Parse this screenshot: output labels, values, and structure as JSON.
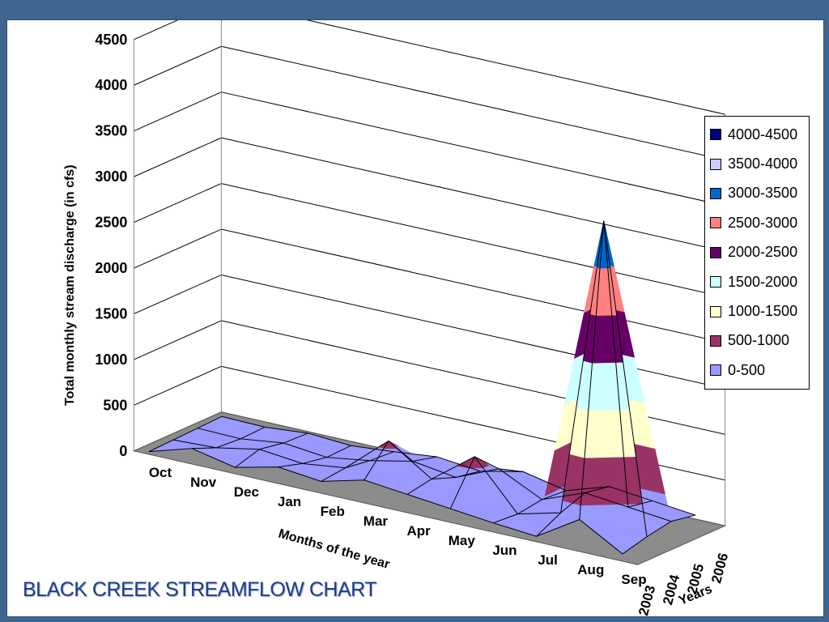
{
  "slide_title": "BLACK CREEK STREAMFLOW CHART",
  "colors": {
    "background": "#3e6690",
    "title": "#1f3d8a",
    "floor": "#8c8c8c"
  },
  "chart_data": {
    "type": "area",
    "chart_style": "3d-surface",
    "title": "",
    "xlabel": "Months of the year",
    "ylabel": "Total monthly stream discharge (in cfs)",
    "zlabel": "Years",
    "categories": [
      "Oct",
      "Nov",
      "Dec",
      "Jan",
      "Feb",
      "Mar",
      "Apr",
      "May",
      "Jun",
      "Jul",
      "Aug",
      "Sep"
    ],
    "years": [
      "2003",
      "2004",
      "2005",
      "2006"
    ],
    "ylim": [
      0,
      4500
    ],
    "yticks": [
      "0",
      "500",
      "1000",
      "1500",
      "2000",
      "2500",
      "3000",
      "3500",
      "4000",
      "4500"
    ],
    "grid": true,
    "legend_position": "right",
    "series": [
      {
        "name": "2003",
        "values": [
          30,
          170,
          70,
          180,
          130,
          250,
          200,
          150,
          100,
          60,
          350,
          80
        ]
      },
      {
        "name": "2004",
        "values": [
          40,
          60,
          150,
          100,
          160,
          560,
          250,
          600,
          80,
          200,
          3500,
          150
        ]
      },
      {
        "name": "2005",
        "values": [
          50,
          40,
          100,
          50,
          120,
          220,
          150,
          350,
          120,
          300,
          250,
          200
        ]
      },
      {
        "name": "2006",
        "values": [
          60,
          50,
          90,
          60,
          100,
          150,
          100,
          200,
          100,
          250,
          200,
          150
        ]
      }
    ],
    "legend": [
      {
        "label": "4000-4500",
        "color": "#000080"
      },
      {
        "label": "3500-4000",
        "color": "#ccccff"
      },
      {
        "label": "3000-3500",
        "color": "#0066cc"
      },
      {
        "label": "2500-3000",
        "color": "#ff8080"
      },
      {
        "label": "2000-2500",
        "color": "#660066"
      },
      {
        "label": "1500-2000",
        "color": "#ccffff"
      },
      {
        "label": "1000-1500",
        "color": "#ffffcc"
      },
      {
        "label": "500-1000",
        "color": "#993366"
      },
      {
        "label": "0-500",
        "color": "#9999ff"
      }
    ]
  }
}
